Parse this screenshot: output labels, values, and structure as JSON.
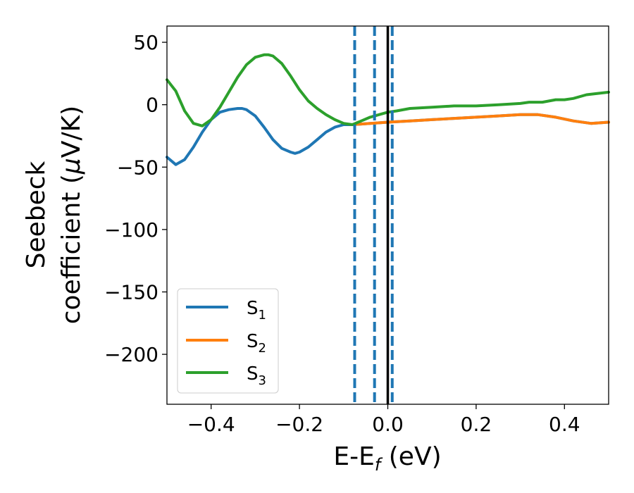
{
  "chart_data": {
    "type": "line",
    "title": "",
    "xlabel": {
      "main": "E-E",
      "sub": "f",
      "unit": " (eV)"
    },
    "ylabel": {
      "line1": "Seebeck",
      "line2_prefix": "coefficient  (",
      "mu": "μ",
      "line2_suffix": "V/K)"
    },
    "xlim": [
      -0.5,
      0.5
    ],
    "ylim": [
      -240,
      63
    ],
    "xticks": [
      -0.4,
      -0.2,
      0.0,
      0.2,
      0.4
    ],
    "xtick_labels": [
      "−0.4",
      "−0.2",
      "0.0",
      "0.2",
      "0.4"
    ],
    "yticks": [
      50,
      0,
      -50,
      -100,
      -150,
      -200
    ],
    "ytick_labels": [
      "50",
      "0",
      "−50",
      "−100",
      "−150",
      "−200"
    ],
    "grid": false,
    "legend_position": "lower-left",
    "series": [
      {
        "name": "S",
        "name_sub": "1",
        "color": "#1f77b4",
        "x": [
          -0.5,
          -0.48,
          -0.46,
          -0.44,
          -0.42,
          -0.4,
          -0.38,
          -0.36,
          -0.34,
          -0.33,
          -0.32,
          -0.3,
          -0.28,
          -0.26,
          -0.24,
          -0.22,
          -0.21,
          -0.2,
          -0.18,
          -0.16,
          -0.14,
          -0.12,
          -0.1,
          -0.08,
          -0.06,
          -0.04,
          -0.02,
          0.0,
          0.05,
          0.1,
          0.15,
          0.2,
          0.25,
          0.3,
          0.34,
          0.38,
          0.42,
          0.46,
          0.5
        ],
        "y": [
          -42,
          -48,
          -44,
          -34,
          -22,
          -12,
          -6,
          -4,
          -3,
          -3,
          -4,
          -9,
          -18,
          -28,
          -35,
          -38,
          -39,
          -38,
          -34,
          -28,
          -22,
          -18,
          -16,
          -16,
          -15.5,
          -15,
          -14.5,
          -14,
          -13,
          -12,
          -11,
          -10,
          -9,
          -8,
          -8,
          -10,
          -13,
          -15,
          -14
        ]
      },
      {
        "name": "S",
        "name_sub": "2",
        "color": "#ff7f0e",
        "x": [
          -0.08,
          -0.06,
          -0.04,
          -0.02,
          0.0,
          0.05,
          0.1,
          0.15,
          0.2,
          0.25,
          0.3,
          0.34,
          0.38,
          0.42,
          0.46,
          0.5
        ],
        "y": [
          -16,
          -15.5,
          -15,
          -14.5,
          -14,
          -13,
          -12,
          -11,
          -10,
          -9,
          -8,
          -8,
          -10,
          -13,
          -15,
          -14
        ]
      },
      {
        "name": "S",
        "name_sub": "3",
        "color": "#2ca02c",
        "x": [
          -0.5,
          -0.48,
          -0.46,
          -0.44,
          -0.42,
          -0.4,
          -0.38,
          -0.36,
          -0.34,
          -0.32,
          -0.3,
          -0.28,
          -0.27,
          -0.26,
          -0.24,
          -0.22,
          -0.2,
          -0.18,
          -0.16,
          -0.14,
          -0.12,
          -0.1,
          -0.08,
          -0.06,
          -0.04,
          -0.02,
          0.0,
          0.02,
          0.05,
          0.1,
          0.15,
          0.2,
          0.25,
          0.3,
          0.32,
          0.35,
          0.38,
          0.4,
          0.42,
          0.45,
          0.5
        ],
        "y": [
          20,
          11,
          -5,
          -15,
          -17,
          -12,
          -2,
          10,
          22,
          32,
          38,
          40,
          40,
          39,
          33,
          23,
          12,
          3,
          -3,
          -8,
          -12,
          -15,
          -16,
          -13,
          -10,
          -8,
          -6,
          -5,
          -3,
          -2,
          -1,
          -1,
          0,
          1,
          2,
          2,
          4,
          4,
          5,
          8,
          10
        ]
      }
    ],
    "vlines": [
      {
        "x": -0.075,
        "style": "dashed",
        "color": "#1f77b4"
      },
      {
        "x": -0.03,
        "style": "dashed",
        "color": "#1f77b4"
      },
      {
        "x": 0.01,
        "style": "dashed",
        "color": "#1f77b4"
      },
      {
        "x": 0.0,
        "style": "solid",
        "color": "#000000"
      }
    ]
  }
}
